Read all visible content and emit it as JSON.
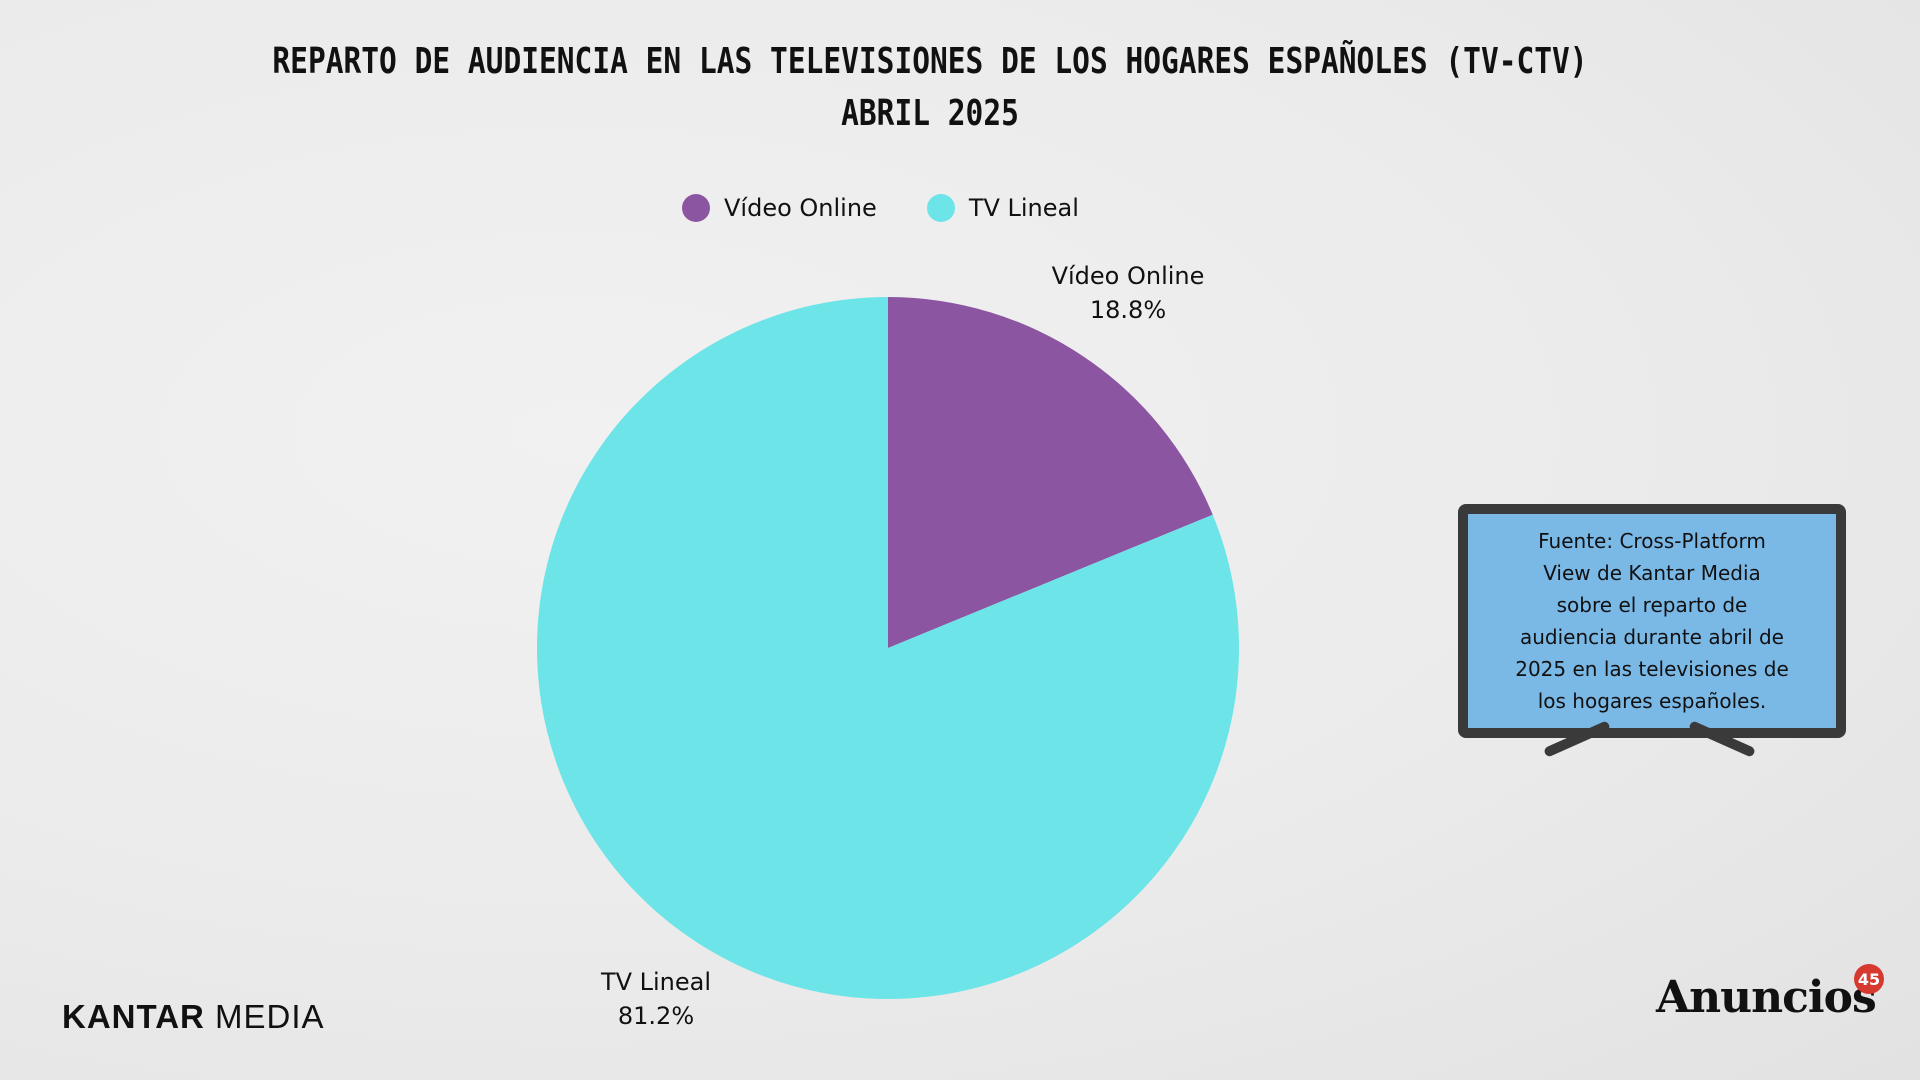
{
  "chart_data": {
    "type": "pie",
    "title": "REPARTO DE AUDIENCIA EN LAS TELEVISIONES DE LOS HOGARES ESPAÑOLES (TV-CTV)",
    "subtitle": "ABRIL 2025",
    "categories": [
      "Vídeo Online",
      "TV Lineal"
    ],
    "values": [
      18.8,
      81.2
    ],
    "value_labels": [
      "18.8%",
      "81.2%"
    ],
    "colors": [
      "#8b55a2",
      "#6ce4e8"
    ],
    "legend_position": "top",
    "start_angle_deg": 0,
    "direction": "clockwise"
  },
  "note": {
    "lines": [
      "Fuente: Cross-Platform",
      "View de Kantar Media",
      "sobre el reparto de",
      "audiencia durante abril de",
      "2025 en las televisiones de",
      "los hogares españoles."
    ]
  },
  "logos": {
    "left_bold": "KANTAR",
    "left_light": "MEDIA",
    "right": "Anuncios",
    "right_badge": "45"
  }
}
